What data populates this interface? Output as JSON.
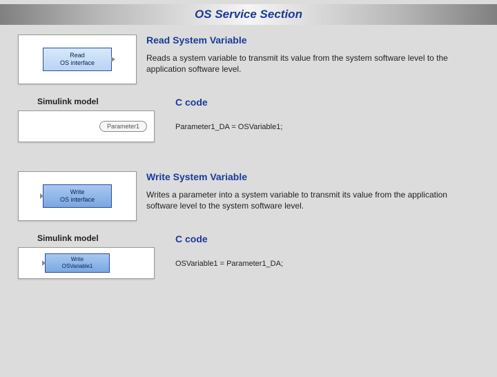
{
  "colors": {
    "page_bg": "#dcdcdc",
    "accent": "#1a3a9a",
    "block_fill_top": "#a8c8f0",
    "block_fill_bottom": "#7aa8e0",
    "block_border": "#2a4aa0",
    "box_bg": "#ffffff"
  },
  "header": {
    "title": "OS Service Section"
  },
  "read": {
    "title": "Read System Variable",
    "desc": "Reads a system variable to transmit its value from the system software level to the application software level.",
    "block_line1": "Read",
    "block_line2": "OS interface",
    "simulink_label": "Simulink model",
    "ccode_label": "C code",
    "param_pill": "Parameter1",
    "code": "Parameter1_DA = OSVariable1;"
  },
  "write": {
    "title": "Write System Variable",
    "desc": "Writes a parameter into a system variable to transmit its value from the application software level to the system software level.",
    "block_line1": "Write",
    "block_line2": "OS interface",
    "simulink_label": "Simulink model",
    "ccode_label": "C code",
    "sim_block_line1": "Write",
    "sim_block_line2": "OSVariable1",
    "code": "OSVariable1 = Parameter1_DA;"
  }
}
